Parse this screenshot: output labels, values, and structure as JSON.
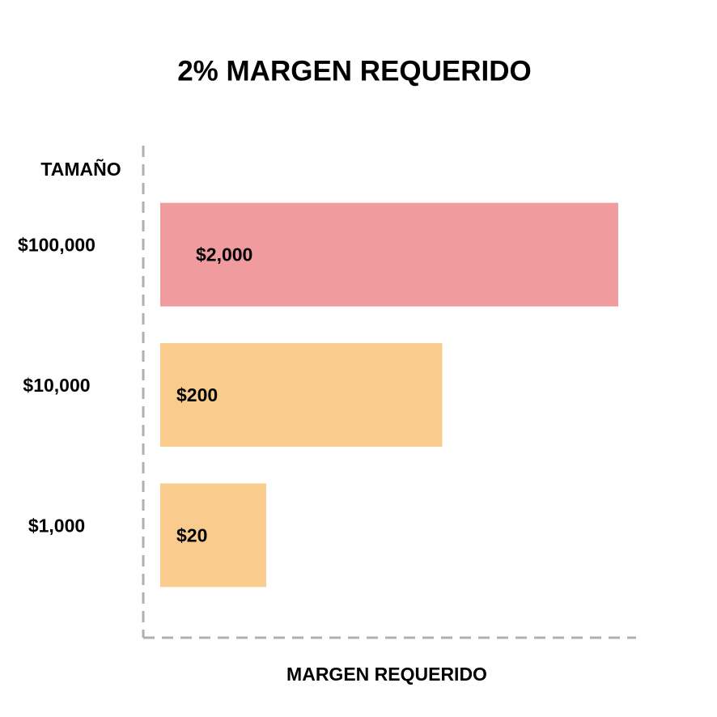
{
  "chart_data": {
    "type": "bar",
    "orientation": "horizontal",
    "title": "2% MARGEN REQUERIDO",
    "y_label": "TAMAÑO",
    "x_label": "MARGEN REQUERIDO",
    "categories": [
      "$100,000",
      "$10,000",
      "$1,000"
    ],
    "values": [
      2000,
      200,
      20
    ],
    "value_labels": [
      "$2,000",
      "$200",
      "$20"
    ],
    "colors": [
      "#f09b9e",
      "#f9cc8e",
      "#f9cc8e"
    ],
    "xlim": [
      5,
      2500
    ],
    "log_scale": true
  }
}
